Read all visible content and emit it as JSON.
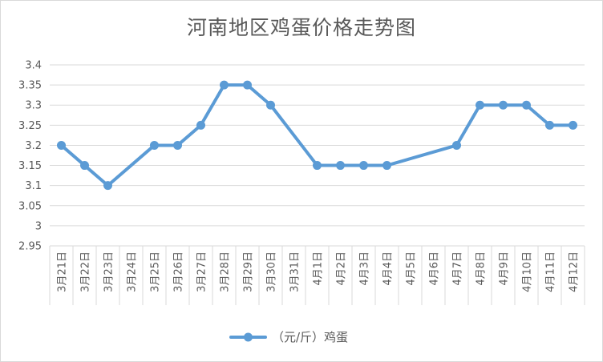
{
  "chart_data": {
    "type": "line",
    "title": "河南地区鸡蛋价格走势图",
    "xlabel": "",
    "ylabel": "",
    "categories": [
      "3月21日",
      "3月22日",
      "3月23日",
      "3月24日",
      "3月25日",
      "3月26日",
      "3月27日",
      "3月28日",
      "3月29日",
      "3月30日",
      "3月31日",
      "4月1日",
      "4月2日",
      "4月3日",
      "4月4日",
      "4月5日",
      "4月6日",
      "4月7日",
      "4月8日",
      "4月9日",
      "4月10日",
      "4月11日",
      "4月12日"
    ],
    "series": [
      {
        "name": "（元/斤）鸡蛋",
        "color": "#5b9bd5",
        "values": [
          3.2,
          3.15,
          3.1,
          null,
          3.2,
          3.2,
          3.25,
          3.35,
          3.35,
          3.3,
          null,
          3.15,
          3.15,
          3.15,
          3.15,
          null,
          null,
          3.2,
          3.3,
          3.3,
          3.3,
          3.25,
          3.25
        ]
      }
    ],
    "ylim": [
      2.95,
      3.4
    ],
    "yticks": [
      "2.95",
      "3",
      "3.05",
      "3.1",
      "3.15",
      "3.2",
      "3.25",
      "3.3",
      "3.35",
      "3.4"
    ],
    "ytick_values": [
      2.95,
      3.0,
      3.05,
      3.1,
      3.15,
      3.2,
      3.25,
      3.3,
      3.35,
      3.4
    ],
    "grid": true,
    "legend_position": "bottom",
    "gap_handling": "connect"
  }
}
